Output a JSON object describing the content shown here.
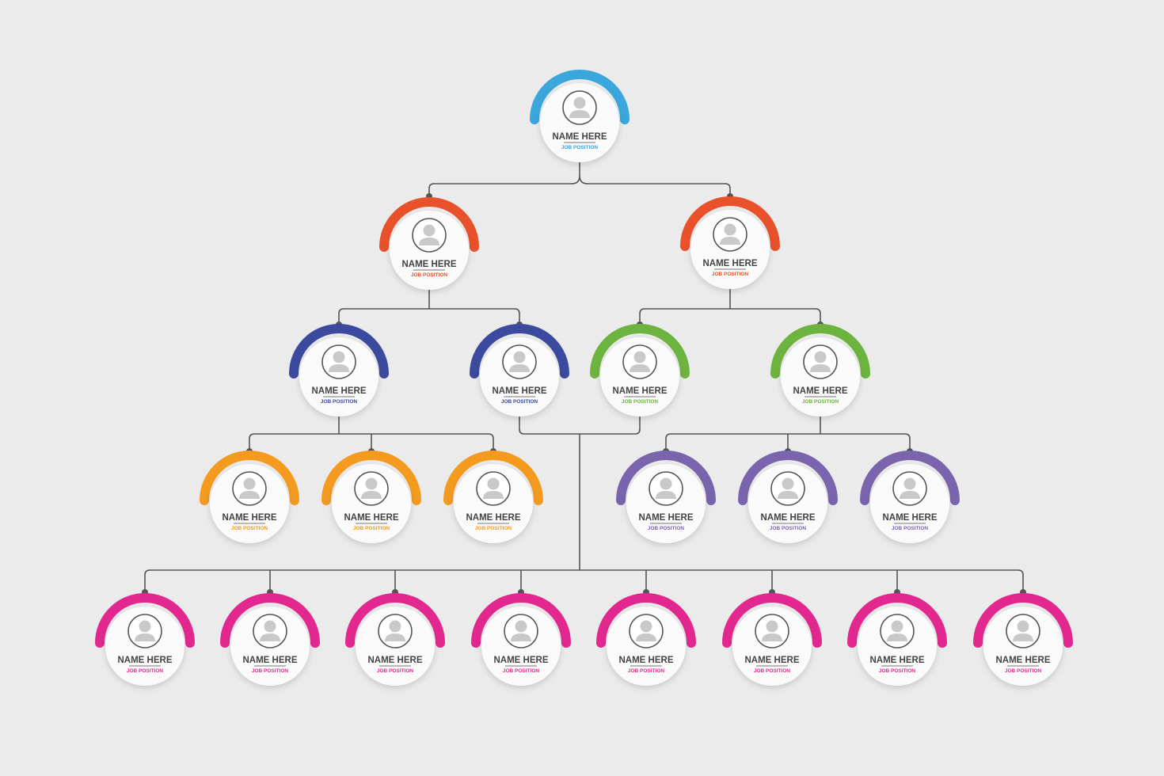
{
  "nodes": [
    {
      "name": "NAME HERE",
      "position": "JOB POSITION",
      "color": "#3aa6dc"
    },
    {
      "name": "NAME HERE",
      "position": "JOB POSITION",
      "color": "#e8512a"
    },
    {
      "name": "NAME HERE",
      "position": "JOB POSITION",
      "color": "#e8512a"
    },
    {
      "name": "NAME HERE",
      "position": "JOB POSITION",
      "color": "#3b4a9e"
    },
    {
      "name": "NAME HERE",
      "position": "JOB POSITION",
      "color": "#3b4a9e"
    },
    {
      "name": "NAME HERE",
      "position": "JOB POSITION",
      "color": "#6db33f"
    },
    {
      "name": "NAME HERE",
      "position": "JOB POSITION",
      "color": "#6db33f"
    },
    {
      "name": "NAME HERE",
      "position": "JOB POSITION",
      "color": "#f39a1f"
    },
    {
      "name": "NAME HERE",
      "position": "JOB POSITION",
      "color": "#f39a1f"
    },
    {
      "name": "NAME HERE",
      "position": "JOB POSITION",
      "color": "#f39a1f"
    },
    {
      "name": "NAME HERE",
      "position": "JOB POSITION",
      "color": "#7a64ad"
    },
    {
      "name": "NAME HERE",
      "position": "JOB POSITION",
      "color": "#7a64ad"
    },
    {
      "name": "NAME HERE",
      "position": "JOB POSITION",
      "color": "#7a64ad"
    },
    {
      "name": "NAME HERE",
      "position": "JOB POSITION",
      "color": "#e2288f"
    },
    {
      "name": "NAME HERE",
      "position": "JOB POSITION",
      "color": "#e2288f"
    },
    {
      "name": "NAME HERE",
      "position": "JOB POSITION",
      "color": "#e2288f"
    },
    {
      "name": "NAME HERE",
      "position": "JOB POSITION",
      "color": "#e2288f"
    },
    {
      "name": "NAME HERE",
      "position": "JOB POSITION",
      "color": "#e2288f"
    },
    {
      "name": "NAME HERE",
      "position": "JOB POSITION",
      "color": "#e2288f"
    },
    {
      "name": "NAME HERE",
      "position": "JOB POSITION",
      "color": "#e2288f"
    },
    {
      "name": "NAME HERE",
      "position": "JOB POSITION",
      "color": "#e2288f"
    }
  ]
}
